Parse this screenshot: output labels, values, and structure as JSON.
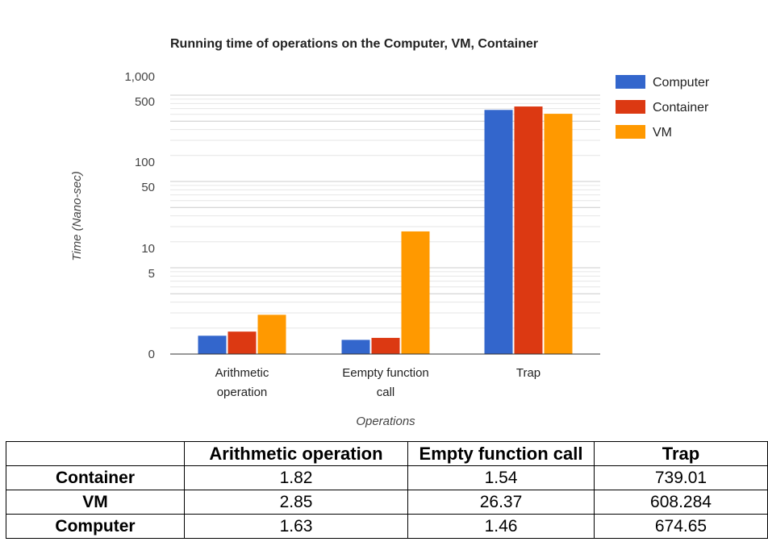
{
  "chart_data": {
    "type": "bar",
    "title": "Running time of operations on the Computer, VM, Container",
    "xlabel": "Operations",
    "ylabel": "Time (Nano-sec)",
    "y_scale": "log",
    "yticks": [
      "1,000",
      "500",
      "100",
      "50",
      "10",
      "5",
      "0"
    ],
    "categories": [
      [
        "Arithmetic",
        "operation"
      ],
      [
        "Eempty function",
        "call"
      ],
      [
        "Trap"
      ]
    ],
    "series": [
      {
        "name": "Computer",
        "color": "#3366cc",
        "values": [
          1.63,
          1.46,
          674.65
        ]
      },
      {
        "name": "Container",
        "color": "#dc3912",
        "values": [
          1.82,
          1.54,
          739.01
        ]
      },
      {
        "name": "VM",
        "color": "#ff9900",
        "values": [
          2.85,
          26.37,
          608.284
        ]
      }
    ],
    "legend": "right",
    "grid": true
  },
  "table": {
    "headers": [
      "",
      "Arithmetic operation",
      "Empty function call",
      "Trap"
    ],
    "rows": [
      [
        "Container",
        "1.82",
        "1.54",
        "739.01"
      ],
      [
        "VM",
        "2.85",
        "26.37",
        "608.284"
      ],
      [
        "Computer",
        "1.63",
        "1.46",
        "674.65"
      ]
    ]
  }
}
